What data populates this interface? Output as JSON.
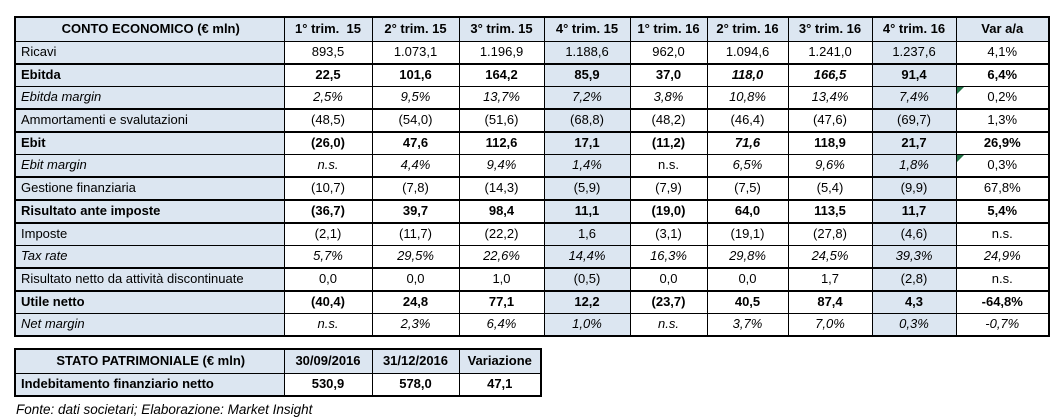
{
  "colors": {
    "cell_fill": "#DCE6F1",
    "border": "#000000",
    "text": "#000000",
    "error_indicator_green": "#217346"
  },
  "footnote": "Fonte: dati societari; Elaborazione: Market Insight",
  "chart_data": [
    {
      "type": "table",
      "title": "CONTO ECONOMICO (€ mln)",
      "columns": [
        "1° trim.  15",
        "2° trim. 15",
        "3° trim. 15",
        "4° trim. 15",
        "1° trim. 16",
        "2° trim. 16",
        "3° trim. 16",
        "4° trim. 16",
        "Var a/a"
      ],
      "highlight_value_columns": [
        3,
        7
      ],
      "rows": [
        {
          "label": "Ricavi",
          "style": "regular",
          "border_after": "thick",
          "values": [
            "893,5",
            "1.073,1",
            "1.196,9",
            "1.188,6",
            "962,0",
            "1.094,6",
            "1.241,0",
            "1.237,6",
            "4,1%"
          ]
        },
        {
          "label": "Ebitda",
          "style": "bold",
          "border_after": "thin",
          "values": [
            "22,5",
            "101,6",
            "164,2",
            "85,9",
            "37,0",
            "118,0",
            "166,5",
            "91,4",
            "6,4%"
          ],
          "cell_styles": {
            "5": "bold-italic",
            "6": "bold-italic"
          }
        },
        {
          "label": "Ebitda margin",
          "style": "italic",
          "border_after": "thick",
          "values": [
            "2,5%",
            "9,5%",
            "13,7%",
            "7,2%",
            "3,8%",
            "10,8%",
            "13,4%",
            "7,4%",
            "0,2%"
          ],
          "cell_styles": {
            "8": "regular"
          },
          "green_corners": [
            8
          ]
        },
        {
          "label": "Ammortamenti e svalutazioni",
          "style": "regular",
          "border_after": "thick",
          "values": [
            "(48,5)",
            "(54,0)",
            "(51,6)",
            "(68,8)",
            "(48,2)",
            "(46,4)",
            "(47,6)",
            "(69,7)",
            "1,3%"
          ]
        },
        {
          "label": "Ebit",
          "style": "bold",
          "border_after": "thin",
          "values": [
            "(26,0)",
            "47,6",
            "112,6",
            "17,1",
            "(11,2)",
            "71,6",
            "118,9",
            "21,7",
            "26,9%"
          ],
          "cell_styles": {
            "5": "bold-italic"
          }
        },
        {
          "label": "Ebit margin",
          "style": "italic",
          "border_after": "thick",
          "values": [
            "n.s.",
            "4,4%",
            "9,4%",
            "1,4%",
            "n.s.",
            "6,5%",
            "9,6%",
            "1,8%",
            "0,3%"
          ],
          "cell_styles": {
            "4": "regular",
            "8": "regular"
          },
          "green_corners": [
            8
          ]
        },
        {
          "label": "Gestione finanziaria",
          "style": "regular",
          "border_after": "thick",
          "values": [
            "(10,7)",
            "(7,8)",
            "(14,3)",
            "(5,9)",
            "(7,9)",
            "(7,5)",
            "(5,4)",
            "(9,9)",
            "67,8%"
          ]
        },
        {
          "label": "Risultato ante imposte",
          "style": "bold",
          "border_after": "thick",
          "values": [
            "(36,7)",
            "39,7",
            "98,4",
            "11,1",
            "(19,0)",
            "64,0",
            "113,5",
            "11,7",
            "5,4%"
          ]
        },
        {
          "label": "Imposte",
          "style": "regular",
          "border_after": "thin",
          "values": [
            "(2,1)",
            "(11,7)",
            "(22,2)",
            "1,6",
            "(3,1)",
            "(19,1)",
            "(27,8)",
            "(4,6)",
            "n.s."
          ]
        },
        {
          "label": "Tax rate",
          "style": "italic",
          "border_after": "thick",
          "values": [
            "5,7%",
            "29,5%",
            "22,6%",
            "14,4%",
            "16,3%",
            "29,8%",
            "24,5%",
            "39,3%",
            "24,9%"
          ]
        },
        {
          "label": "Risultato netto da attività discontinuate",
          "style": "regular",
          "border_after": "thick",
          "values": [
            "0,0",
            "0,0",
            "1,0",
            "(0,5)",
            "0,0",
            "0,0",
            "1,7",
            "(2,8)",
            "n.s."
          ]
        },
        {
          "label": "Utile netto",
          "style": "bold",
          "border_after": "thin",
          "values": [
            "(40,4)",
            "24,8",
            "77,1",
            "12,2",
            "(23,7)",
            "40,5",
            "87,4",
            "4,3",
            "-64,8%"
          ]
        },
        {
          "label": "Net margin",
          "style": "italic",
          "border_after": "thick",
          "values": [
            "n.s.",
            "2,3%",
            "6,4%",
            "1,0%",
            "n.s.",
            "3,7%",
            "7,0%",
            "0,3%",
            "-0,7%"
          ]
        }
      ]
    },
    {
      "type": "table",
      "title": "STATO PATRIMONIALE (€ mln)",
      "columns": [
        "30/09/2016",
        "31/12/2016",
        "Variazione"
      ],
      "highlight_value_columns": [],
      "rows": [
        {
          "label": "Indebitamento finanziario netto",
          "style": "bold",
          "border_after": "thick",
          "values": [
            "530,9",
            "578,0",
            "47,1"
          ]
        }
      ]
    }
  ]
}
